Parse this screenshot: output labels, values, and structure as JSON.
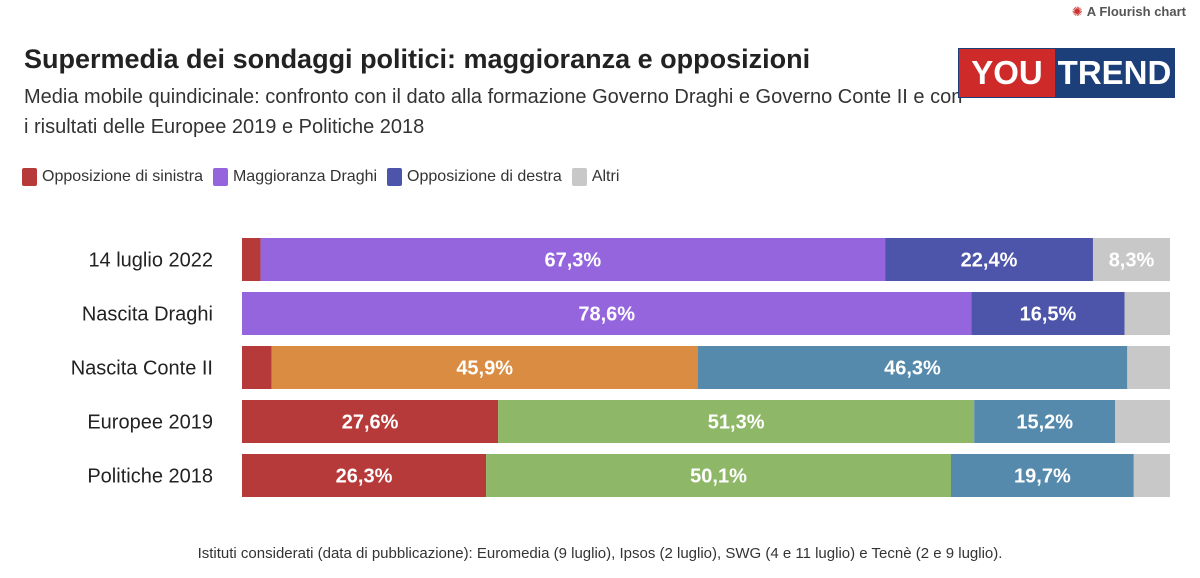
{
  "branding": {
    "flourish": "A Flourish chart",
    "logo_left": "YOU",
    "logo_right": "TREND"
  },
  "title": "Supermedia dei sondaggi politici: maggioranza e opposizioni",
  "subtitle": "Media mobile quindicinale: confronto con il dato alla formazione Governo Draghi e Governo Conte II e con i risultati delle Europee 2019 e Politiche 2018",
  "legend": [
    {
      "label": "Opposizione di sinistra",
      "color": "#b73a3a"
    },
    {
      "label": "Maggioranza Draghi",
      "color": "#9465dc"
    },
    {
      "label": "Opposizione di destra",
      "color": "#4d55ab"
    },
    {
      "label": "Altri",
      "color": "#c8c8c8"
    }
  ],
  "footnote": "Istituti considerati (data di pubblicazione): Euromedia (9 luglio), Ipsos (2 luglio), SWG (4 e 11 luglio) e Tecnè (2 e 9 luglio).",
  "chart_data": {
    "type": "bar",
    "orientation": "horizontal",
    "stacked": "100%",
    "categories": [
      "14 luglio 2022",
      "Nascita Draghi",
      "Nascita Conte II",
      "Europee 2019",
      "Politiche 2018"
    ],
    "rows": [
      {
        "category": "14 luglio 2022",
        "segments": [
          {
            "value": 2.0,
            "color": "#b73a3a",
            "label": ""
          },
          {
            "value": 67.3,
            "color": "#9465dc",
            "label": "67,3%"
          },
          {
            "value": 22.4,
            "color": "#4d55ab",
            "label": "22,4%"
          },
          {
            "value": 8.3,
            "color": "#c8c8c8",
            "label": "8,3%"
          }
        ]
      },
      {
        "category": "Nascita Draghi",
        "segments": [
          {
            "value": 78.6,
            "color": "#9465dc",
            "label": "78,6%"
          },
          {
            "value": 16.5,
            "color": "#4d55ab",
            "label": "16,5%"
          },
          {
            "value": 4.9,
            "color": "#c8c8c8",
            "label": ""
          }
        ]
      },
      {
        "category": "Nascita Conte II",
        "segments": [
          {
            "value": 3.2,
            "color": "#b73a3a",
            "label": ""
          },
          {
            "value": 45.9,
            "color": "#d98c42",
            "label": "45,9%"
          },
          {
            "value": 46.3,
            "color": "#558aad",
            "label": "46,3%"
          },
          {
            "value": 4.6,
            "color": "#c8c8c8",
            "label": ""
          }
        ]
      },
      {
        "category": "Europee 2019",
        "segments": [
          {
            "value": 27.6,
            "color": "#b73a3a",
            "label": "27,6%"
          },
          {
            "value": 51.3,
            "color": "#8fb768",
            "label": "51,3%"
          },
          {
            "value": 15.2,
            "color": "#558aad",
            "label": "15,2%"
          },
          {
            "value": 5.9,
            "color": "#c8c8c8",
            "label": ""
          }
        ]
      },
      {
        "category": "Politiche 2018",
        "segments": [
          {
            "value": 26.3,
            "color": "#b73a3a",
            "label": "26,3%"
          },
          {
            "value": 50.1,
            "color": "#8fb768",
            "label": "50,1%"
          },
          {
            "value": 19.7,
            "color": "#558aad",
            "label": "19,7%"
          },
          {
            "value": 3.9,
            "color": "#c8c8c8",
            "label": ""
          }
        ]
      }
    ]
  }
}
